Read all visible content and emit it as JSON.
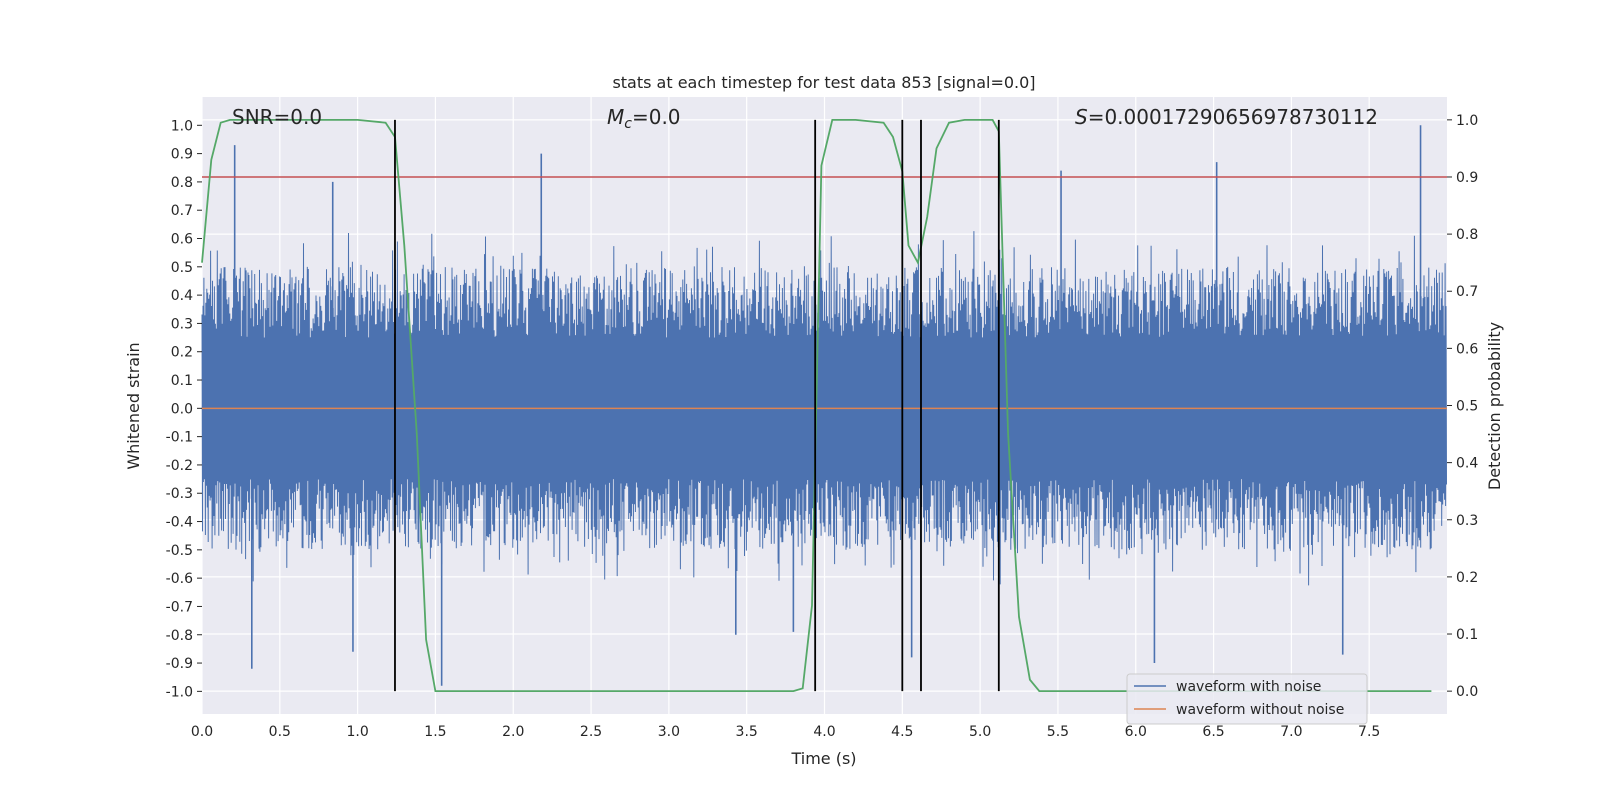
{
  "chart_data": {
    "type": "line",
    "title": "stats at each timestep for test data 853 [signal=0.0]",
    "xlabel": "Time (s)",
    "ylabel_left": "Whitened strain",
    "ylabel_right": "Detection probability",
    "xlim": [
      0.0,
      8.0
    ],
    "ylim_left": [
      -1.08,
      1.1
    ],
    "ylim_right": [
      -0.04,
      1.04
    ],
    "x_ticks": [
      "0.0",
      "0.5",
      "1.0",
      "1.5",
      "2.0",
      "2.5",
      "3.0",
      "3.5",
      "4.0",
      "4.5",
      "5.0",
      "5.5",
      "6.0",
      "6.5",
      "7.0",
      "7.5"
    ],
    "y_left_ticks": [
      "1.0",
      "0.9",
      "0.8",
      "0.7",
      "0.6",
      "0.5",
      "0.4",
      "0.3",
      "0.2",
      "0.1",
      "0.0",
      "-0.1",
      "-0.2",
      "-0.3",
      "-0.4",
      "-0.5",
      "-0.6",
      "-0.7",
      "-0.8",
      "-0.9",
      "-1.0"
    ],
    "y_right_ticks": [
      "1.0",
      "0.9",
      "0.8",
      "0.7",
      "0.6",
      "0.5",
      "0.4",
      "0.3",
      "0.2",
      "0.1",
      "0.0"
    ],
    "grid": true,
    "legend_position": "lower-right",
    "annotations": {
      "snr": "SNR=0.0",
      "mc": "=0.0",
      "mc_symbol": "M",
      "mc_sub": "c",
      "s": "=0.00017290656978730112",
      "s_symbol": "S"
    },
    "series": [
      {
        "name": "waveform with noise",
        "axis": "left",
        "color": "#4c72b0",
        "description": "whitened noise, sampled densely, amplitude mostly within ±0.6",
        "typical_extent": [
          -0.6,
          0.6
        ],
        "peak_samples": [
          [
            0.21,
            0.93
          ],
          [
            0.32,
            -0.92
          ],
          [
            0.84,
            0.8
          ],
          [
            0.97,
            -0.86
          ],
          [
            1.54,
            -0.98
          ],
          [
            2.18,
            0.9
          ],
          [
            3.43,
            -0.8
          ],
          [
            3.8,
            -0.79
          ],
          [
            4.56,
            -0.88
          ],
          [
            5.52,
            0.84
          ],
          [
            6.12,
            -0.9
          ],
          [
            6.52,
            0.87
          ],
          [
            7.33,
            -0.87
          ],
          [
            7.83,
            1.0
          ]
        ]
      },
      {
        "name": "waveform without noise",
        "axis": "left",
        "color": "#dd8452",
        "x": [
          0.0,
          8.0
        ],
        "y": [
          0.0,
          0.0
        ]
      },
      {
        "name": "detection probability",
        "axis": "right",
        "color": "#55a868",
        "x": [
          0.0,
          0.06,
          0.12,
          0.18,
          0.25,
          0.5,
          1.0,
          1.18,
          1.24,
          1.3,
          1.38,
          1.44,
          1.5,
          1.56,
          2.0,
          3.0,
          3.8,
          3.86,
          3.92,
          3.98,
          4.05,
          4.2,
          4.38,
          4.44,
          4.5,
          4.54,
          4.6,
          4.66,
          4.72,
          4.8,
          4.9,
          5.08,
          5.12,
          5.18,
          5.25,
          5.32,
          5.38,
          5.45,
          6.0,
          7.0,
          7.9
        ],
        "y": [
          0.75,
          0.93,
          0.995,
          1.0,
          1.0,
          1.0,
          1.0,
          0.995,
          0.97,
          0.78,
          0.45,
          0.09,
          0.0,
          0.0,
          0.0,
          0.0,
          0.0,
          0.005,
          0.15,
          0.92,
          1.0,
          1.0,
          0.995,
          0.97,
          0.91,
          0.78,
          0.75,
          0.83,
          0.95,
          0.995,
          1.0,
          1.0,
          0.98,
          0.45,
          0.13,
          0.02,
          0.0,
          0.0,
          0.0,
          0.0,
          0.0
        ]
      }
    ],
    "threshold_line": {
      "axis": "right",
      "value": 0.9,
      "color": "#c44e52"
    },
    "vertical_lines": {
      "color": "#000000",
      "x": [
        1.24,
        3.94,
        4.5,
        4.62,
        5.12
      ],
      "right_range": [
        0.0,
        1.0
      ]
    }
  }
}
